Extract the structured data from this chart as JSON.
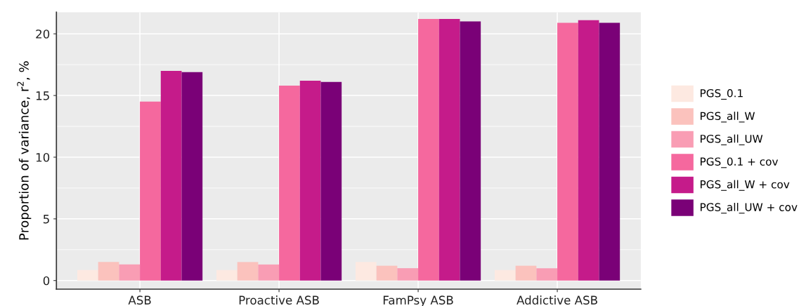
{
  "chart_data": {
    "type": "bar",
    "ylabel": "Proportion of variance, r$^{2}$, %",
    "categories": [
      "ASB",
      "Proactive ASB",
      "FamPsy ASB",
      "Addictive ASB"
    ],
    "series": [
      {
        "name": "PGS_0.1",
        "color": "#fde9e1",
        "values": [
          0.85,
          0.85,
          1.5,
          0.85
        ]
      },
      {
        "name": "PGS_all_W",
        "color": "#fbc2bd",
        "values": [
          1.5,
          1.5,
          1.2,
          1.2
        ]
      },
      {
        "name": "PGS_all_UW",
        "color": "#f99db4",
        "values": [
          1.3,
          1.3,
          1.0,
          1.0
        ]
      },
      {
        "name": "PGS_0.1 + cov",
        "color": "#f5689e",
        "values": [
          14.5,
          15.8,
          21.2,
          20.9
        ]
      },
      {
        "name": "PGS_all_W + cov",
        "color": "#c51b8a",
        "values": [
          17.0,
          16.2,
          21.2,
          21.1
        ]
      },
      {
        "name": "PGS_all_UW + cov",
        "color": "#7a0177",
        "values": [
          16.9,
          16.1,
          21.0,
          20.9
        ]
      }
    ],
    "ylim": [
      -0.7,
      21.75
    ],
    "yticks": [
      0,
      5,
      10,
      15,
      20
    ],
    "grid": true,
    "legend": "right"
  }
}
